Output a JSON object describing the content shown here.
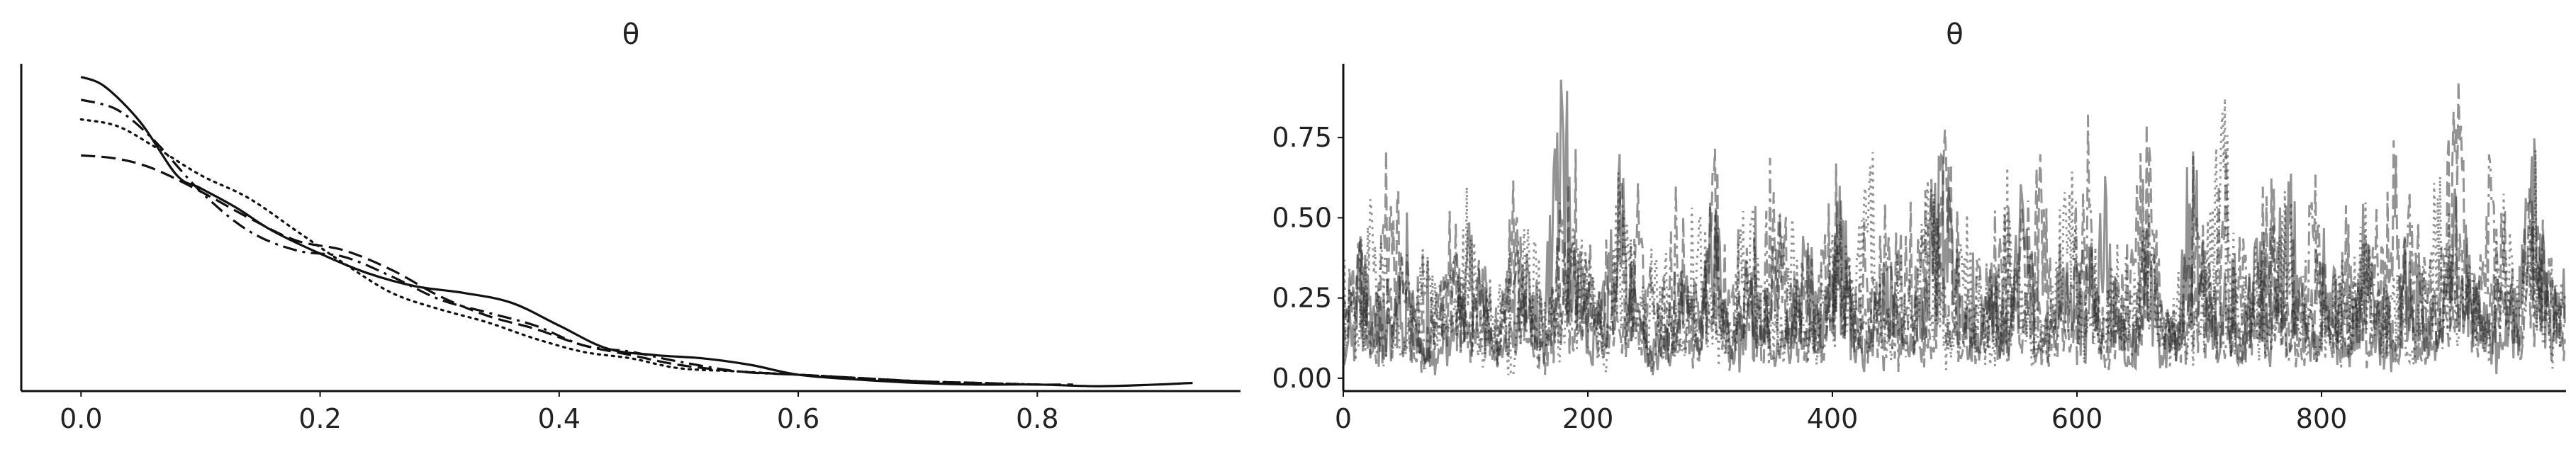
{
  "chart_data": [
    {
      "type": "line",
      "panel": "density",
      "title": "θ",
      "xlabel": "",
      "ylabel": "",
      "xlim": [
        -0.05,
        0.97
      ],
      "ylim": [
        0,
        1
      ],
      "x_ticks": [
        0.0,
        0.2,
        0.4,
        0.6,
        0.8
      ],
      "x_tick_labels": [
        "0.0",
        "0.2",
        "0.4",
        "0.6",
        "0.8"
      ],
      "y_ticks": [],
      "grid": false,
      "legend": "none",
      "series": [
        {
          "style": "solid",
          "x": [
            0.0,
            0.02,
            0.05,
            0.08,
            0.1,
            0.13,
            0.16,
            0.2,
            0.24,
            0.28,
            0.32,
            0.36,
            0.4,
            0.44,
            0.48,
            0.52,
            0.56,
            0.6,
            0.65,
            0.7,
            0.75,
            0.8,
            0.85,
            0.9,
            0.93
          ],
          "y": [
            0.96,
            0.93,
            0.82,
            0.66,
            0.62,
            0.56,
            0.49,
            0.42,
            0.36,
            0.32,
            0.3,
            0.27,
            0.2,
            0.13,
            0.11,
            0.1,
            0.08,
            0.05,
            0.035,
            0.025,
            0.02,
            0.02,
            0.015,
            0.02,
            0.025
          ]
        },
        {
          "style": "dashed",
          "x": [
            0.0,
            0.03,
            0.06,
            0.1,
            0.14,
            0.18,
            0.22,
            0.26,
            0.3,
            0.34,
            0.38,
            0.42,
            0.46,
            0.5,
            0.55,
            0.6,
            0.65,
            0.7,
            0.75,
            0.8,
            0.83
          ],
          "y": [
            0.72,
            0.71,
            0.68,
            0.61,
            0.53,
            0.46,
            0.43,
            0.37,
            0.29,
            0.23,
            0.19,
            0.14,
            0.11,
            0.08,
            0.06,
            0.05,
            0.04,
            0.03,
            0.025,
            0.02,
            0.02
          ]
        },
        {
          "style": "dotted",
          "x": [
            0.0,
            0.03,
            0.06,
            0.1,
            0.14,
            0.18,
            0.22,
            0.26,
            0.3,
            0.34,
            0.38,
            0.42,
            0.46,
            0.5,
            0.55,
            0.6,
            0.65,
            0.7,
            0.75,
            0.8
          ],
          "y": [
            0.83,
            0.81,
            0.75,
            0.66,
            0.59,
            0.49,
            0.39,
            0.3,
            0.25,
            0.21,
            0.16,
            0.12,
            0.1,
            0.07,
            0.06,
            0.05,
            0.04,
            0.03,
            0.025,
            0.02
          ]
        },
        {
          "style": "dashdot",
          "x": [
            0.0,
            0.03,
            0.06,
            0.1,
            0.14,
            0.18,
            0.22,
            0.26,
            0.3,
            0.34,
            0.38,
            0.42,
            0.46,
            0.5,
            0.55,
            0.6,
            0.65,
            0.7,
            0.75
          ],
          "y": [
            0.89,
            0.86,
            0.77,
            0.61,
            0.49,
            0.43,
            0.41,
            0.35,
            0.28,
            0.24,
            0.2,
            0.14,
            0.12,
            0.09,
            0.06,
            0.05,
            0.04,
            0.03,
            0.02
          ]
        }
      ]
    },
    {
      "type": "line",
      "panel": "trace",
      "title": "θ",
      "xlabel": "",
      "ylabel": "",
      "xlim": [
        0,
        1000
      ],
      "ylim": [
        -0.04,
        0.98
      ],
      "x_ticks": [
        0,
        200,
        400,
        600,
        800
      ],
      "x_tick_labels": [
        "0",
        "200",
        "400",
        "600",
        "800"
      ],
      "y_ticks": [
        0.0,
        0.25,
        0.5,
        0.75
      ],
      "y_tick_labels": [
        "0.00",
        "0.25",
        "0.50",
        "0.75"
      ],
      "grid": false,
      "legend": "none",
      "draws": 1000,
      "series": [
        {
          "style": "solid",
          "values": [
            0.12,
            0.38,
            0.22,
            0.18,
            0.29,
            0.11,
            0.05,
            0.16,
            0.42,
            0.25,
            0.08,
            0.14,
            0.31,
            0.2,
            0.93,
            0.4,
            0.12,
            0.28,
            0.6,
            0.19,
            0.07,
            0.15,
            0.33,
            0.22,
            0.48,
            0.1,
            0.19,
            0.27,
            0.06,
            0.21,
            0.39,
            0.14,
            0.58,
            0.17,
            0.09,
            0.35,
            0.2,
            0.13,
            0.45,
            0.62,
            0.24,
            0.11,
            0.3,
            0.18,
            0.55,
            0.08,
            0.26,
            0.43,
            0.16,
            0.64,
            0.2,
            0.12,
            0.34,
            0.1,
            0.21,
            0.6,
            0.15,
            0.28,
            0.09,
            0.37,
            0.19,
            0.7,
            0.24,
            0.13,
            0.31,
            0.11,
            0.45,
            0.22,
            0.08,
            0.36,
            0.2,
            0.14,
            0.52,
            0.27,
            0.17,
            0.1,
            0.33,
            0.59,
            0.21,
            0.28
          ]
        },
        {
          "style": "dashed",
          "values": [
            0.2,
            0.35,
            0.15,
            0.73,
            0.28,
            0.1,
            0.24,
            0.45,
            0.18,
            0.3,
            0.12,
            0.54,
            0.22,
            0.08,
            0.4,
            0.63,
            0.19,
            0.27,
            0.11,
            0.5,
            0.25,
            0.16,
            0.38,
            0.09,
            0.6,
            0.21,
            0.32,
            0.14,
            0.44,
            0.26,
            0.1,
            0.35,
            0.57,
            0.19,
            0.29,
            0.12,
            0.47,
            0.23,
            0.15,
            0.66,
            0.31,
            0.09,
            0.25,
            0.42,
            0.18,
            0.58,
            0.28,
            0.12,
            0.37,
            0.21,
            0.15,
            0.49,
            0.62,
            0.24,
            0.11,
            0.33,
            0.2,
            0.45,
            0.14,
            0.27,
            0.56,
            0.19,
            0.1,
            0.36,
            0.23,
            0.47,
            0.15,
            0.31,
            0.6,
            0.22,
            0.13,
            0.39,
            0.82,
            0.26,
            0.17,
            0.44,
            0.21,
            0.66,
            0.3,
            0.18
          ]
        },
        {
          "style": "dotted",
          "values": [
            0.3,
            0.14,
            0.55,
            0.2,
            0.09,
            0.38,
            0.26,
            0.12,
            0.47,
            0.19,
            0.33,
            0.07,
            0.5,
            0.22,
            0.15,
            0.41,
            0.28,
            0.11,
            0.6,
            0.18,
            0.34,
            0.25,
            0.09,
            0.46,
            0.21,
            0.13,
            0.56,
            0.3,
            0.16,
            0.4,
            0.1,
            0.27,
            0.52,
            0.2,
            0.75,
            0.14,
            0.36,
            0.23,
            0.62,
            0.12,
            0.43,
            0.29,
            0.17,
            0.5,
            0.24,
            0.09,
            0.39,
            0.57,
            0.21,
            0.13,
            0.35,
            0.26,
            0.48,
            0.15,
            0.3,
            0.11,
            0.44,
            0.7,
            0.2,
            0.32,
            0.14,
            0.51,
            0.25,
            0.1,
            0.38,
            0.22,
            0.55,
            0.16,
            0.29,
            0.08,
            0.42,
            0.63,
            0.19,
            0.34,
            0.12,
            0.46,
            0.24,
            0.58,
            0.15,
            0.28
          ]
        },
        {
          "style": "dashdot",
          "values": [
            0.18,
            0.42,
            0.1,
            0.26,
            0.35,
            0.08,
            0.21,
            0.48,
            0.15,
            0.3,
            0.11,
            0.39,
            0.24,
            0.06,
            0.44,
            0.19,
            0.33,
            0.13,
            0.51,
            0.2,
            0.09,
            0.37,
            0.27,
            0.16,
            0.45,
            0.1,
            0.31,
            0.22,
            0.53,
            0.14,
            0.36,
            0.08,
            0.4,
            0.25,
            0.18,
            0.47,
            0.12,
            0.29,
            0.55,
            0.2,
            0.1,
            0.38,
            0.26,
            0.15,
            0.49,
            0.22,
            0.11,
            0.34,
            0.6,
            0.18,
            0.28,
            0.09,
            0.43,
            0.23,
            0.14,
            0.52,
            0.3,
            0.12,
            0.37,
            0.2,
            0.46,
            0.16,
            0.27,
            0.58,
            0.21,
            0.1,
            0.4,
            0.25,
            0.14,
            0.5,
            0.31,
            0.18,
            0.45,
            0.2,
            0.6,
            0.28,
            0.15,
            0.42,
            0.22,
            0.35
          ]
        }
      ]
    }
  ]
}
